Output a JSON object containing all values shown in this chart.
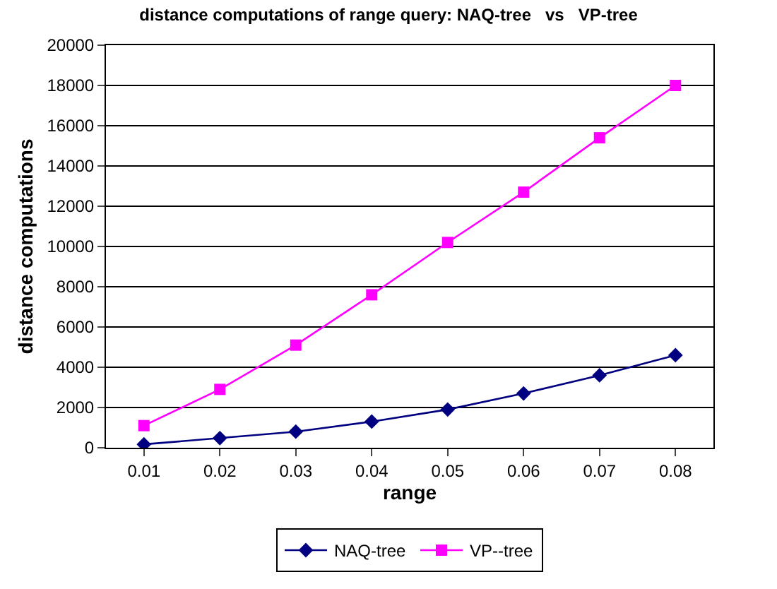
{
  "chart_data": {
    "type": "line",
    "title": "distance computations of range query: NAQ-tree   vs   VP-tree",
    "xlabel": "range",
    "ylabel": "distance computations",
    "categories": [
      "0.01",
      "0.02",
      "0.03",
      "0.04",
      "0.05",
      "0.06",
      "0.07",
      "0.08"
    ],
    "series": [
      {
        "name": "NAQ-tree",
        "color": "#000080",
        "marker": "diamond",
        "values": [
          170,
          480,
          800,
          1300,
          1900,
          2700,
          3600,
          4600
        ]
      },
      {
        "name": "VP--tree",
        "color": "#ff00ff",
        "marker": "square",
        "values": [
          1100,
          2900,
          5100,
          7600,
          10200,
          12700,
          15400,
          18000
        ]
      }
    ],
    "ylim": [
      0,
      20000
    ],
    "yticks": [
      0,
      2000,
      4000,
      6000,
      8000,
      10000,
      12000,
      14000,
      16000,
      18000,
      20000
    ],
    "grid": "y",
    "legend": "bottom",
    "line_style": "solid"
  }
}
